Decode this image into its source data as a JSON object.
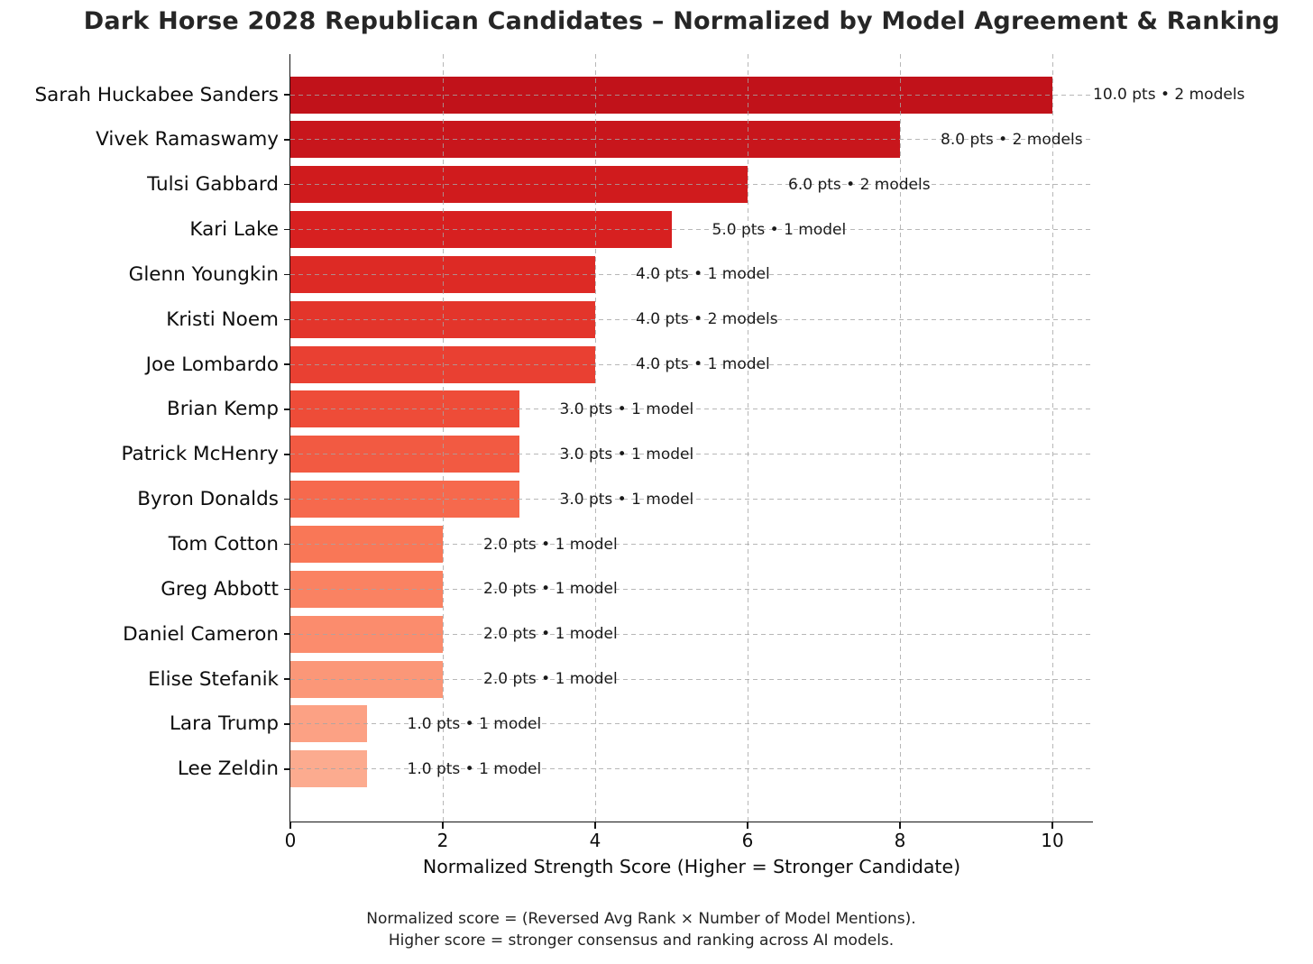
{
  "chart_data": {
    "type": "bar",
    "orientation": "horizontal",
    "title": "Dark Horse 2028 Republican Candidates – Normalized by Model Agreement & Ranking",
    "xlabel": "Normalized Strength Score (Higher = Stronger Candidate)",
    "xlim": [
      0,
      10.53
    ],
    "xticks": [
      0,
      2,
      4,
      6,
      8,
      10
    ],
    "grid": {
      "style": "dashed",
      "axes": "both",
      "color": "#bdbdbd",
      "drawn_over_bars": true
    },
    "categories": [
      "Sarah Huckabee Sanders",
      "Vivek Ramaswamy",
      "Tulsi Gabbard",
      "Kari Lake",
      "Glenn Youngkin",
      "Kristi Noem",
      "Joe Lombardo",
      "Brian Kemp",
      "Patrick McHenry",
      "Byron Donalds",
      "Tom Cotton",
      "Greg Abbott",
      "Daniel Cameron",
      "Elise Stefanik",
      "Lara Trump",
      "Lee Zeldin"
    ],
    "values": [
      10.0,
      8.0,
      6.0,
      5.0,
      4.0,
      4.0,
      4.0,
      3.0,
      3.0,
      3.0,
      2.0,
      2.0,
      2.0,
      2.0,
      1.0,
      1.0
    ],
    "model_counts": [
      2,
      2,
      2,
      1,
      1,
      2,
      1,
      1,
      1,
      1,
      1,
      1,
      1,
      1,
      1,
      1
    ],
    "annotations": [
      "10.0 pts • 2 models",
      "8.0 pts • 2 models",
      "6.0 pts • 2 models",
      "5.0 pts • 1 model",
      "4.0 pts • 1 model",
      "4.0 pts • 2 models",
      "4.0 pts • 1 model",
      "3.0 pts • 1 model",
      "3.0 pts • 1 model",
      "3.0 pts • 1 model",
      "2.0 pts • 1 model",
      "2.0 pts • 1 model",
      "2.0 pts • 1 model",
      "2.0 pts • 1 model",
      "1.0 pts • 1 model",
      "1.0 pts • 1 model"
    ],
    "bar_colors": [
      "#c1121a",
      "#c8161c",
      "#d01b1d",
      "#d72020",
      "#dd2a25",
      "#e3352b",
      "#e94032",
      "#ee4c38",
      "#f25a42",
      "#f6694d",
      "#f97757",
      "#fa8262",
      "#fb8c6d",
      "#fb9778",
      "#fca184",
      "#fcab8f"
    ],
    "footnote_lines": [
      "Normalized score = (Reversed Avg Rank × Number of Model Mentions).",
      "Higher score = stronger consensus and ranking across AI models."
    ]
  }
}
